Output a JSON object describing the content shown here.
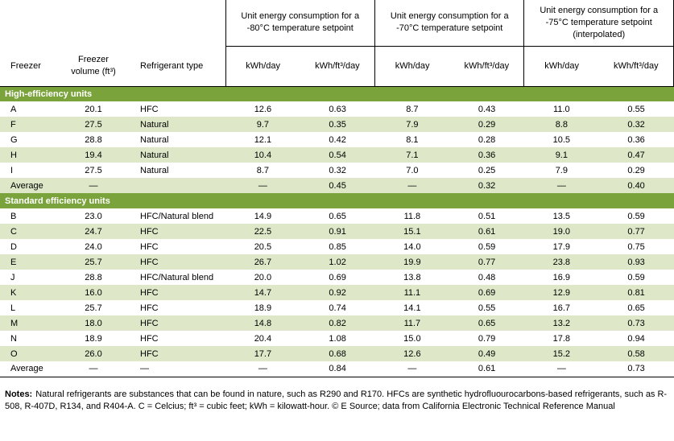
{
  "colors": {
    "section_green": "#7aa33c",
    "row_alt_green": "#dee8c8"
  },
  "table": {
    "groups": [
      "Unit energy consumption for a -80°C temperature setpoint",
      "Unit energy consumption for a -70°C temperature setpoint",
      "Unit energy consumption for a -75°C temperature setpoint (interpolated)"
    ],
    "columns": [
      "Freezer",
      "Freezer volume (ft³)",
      "Refrigerant type",
      "kWh/day",
      "kWh/ft³/day",
      "kWh/day",
      "kWh/ft³/day",
      "kWh/day",
      "kWh/ft³/day"
    ],
    "sections": [
      {
        "title": "High-efficiency units",
        "rows": [
          [
            "A",
            "20.1",
            "HFC",
            "12.6",
            "0.63",
            "8.7",
            "0.43",
            "11.0",
            "0.55"
          ],
          [
            "F",
            "27.5",
            "Natural",
            "9.7",
            "0.35",
            "7.9",
            "0.29",
            "8.8",
            "0.32"
          ],
          [
            "G",
            "28.8",
            "Natural",
            "12.1",
            "0.42",
            "8.1",
            "0.28",
            "10.5",
            "0.36"
          ],
          [
            "H",
            "19.4",
            "Natural",
            "10.4",
            "0.54",
            "7.1",
            "0.36",
            "9.1",
            "0.47"
          ],
          [
            "I",
            "27.5",
            "Natural",
            "8.7",
            "0.32",
            "7.0",
            "0.25",
            "7.9",
            "0.29"
          ],
          [
            "Average",
            "—",
            "",
            "—",
            "0.45",
            "—",
            "0.32",
            "—",
            "0.40"
          ]
        ]
      },
      {
        "title": "Standard efficiency units",
        "rows": [
          [
            "B",
            "23.0",
            "HFC/Natural blend",
            "14.9",
            "0.65",
            "11.8",
            "0.51",
            "13.5",
            "0.59"
          ],
          [
            "C",
            "24.7",
            "HFC",
            "22.5",
            "0.91",
            "15.1",
            "0.61",
            "19.0",
            "0.77"
          ],
          [
            "D",
            "24.0",
            "HFC",
            "20.5",
            "0.85",
            "14.0",
            "0.59",
            "17.9",
            "0.75"
          ],
          [
            "E",
            "25.7",
            "HFC",
            "26.7",
            "1.02",
            "19.9",
            "0.77",
            "23.8",
            "0.93"
          ],
          [
            "J",
            "28.8",
            "HFC/Natural blend",
            "20.0",
            "0.69",
            "13.8",
            "0.48",
            "16.9",
            "0.59"
          ],
          [
            "K",
            "16.0",
            "HFC",
            "14.7",
            "0.92",
            "11.1",
            "0.69",
            "12.9",
            "0.81"
          ],
          [
            "L",
            "25.7",
            "HFC",
            "18.9",
            "0.74",
            "14.1",
            "0.55",
            "16.7",
            "0.65"
          ],
          [
            "M",
            "18.0",
            "HFC",
            "14.8",
            "0.82",
            "11.7",
            "0.65",
            "13.2",
            "0.73"
          ],
          [
            "N",
            "18.9",
            "HFC",
            "20.4",
            "1.08",
            "15.0",
            "0.79",
            "17.8",
            "0.94"
          ],
          [
            "O",
            "26.0",
            "HFC",
            "17.7",
            "0.68",
            "12.6",
            "0.49",
            "15.2",
            "0.58"
          ],
          [
            "Average",
            "—",
            "—",
            "—",
            "0.84",
            "—",
            "0.61",
            "—",
            "0.73"
          ]
        ]
      }
    ]
  },
  "notes": {
    "label": "Notes:",
    "text": "Natural refrigerants are substances that can be found in nature, such as R290 and R170. HFCs are synthetic hydrofluourocarbons-based refrigerants, such as R-508, R-407D, R134, and R404-A. C = Celcius; ft³ = cubic feet; kWh = kilowatt-hour. © E Source; data from California Electronic Technical Reference Manual"
  }
}
